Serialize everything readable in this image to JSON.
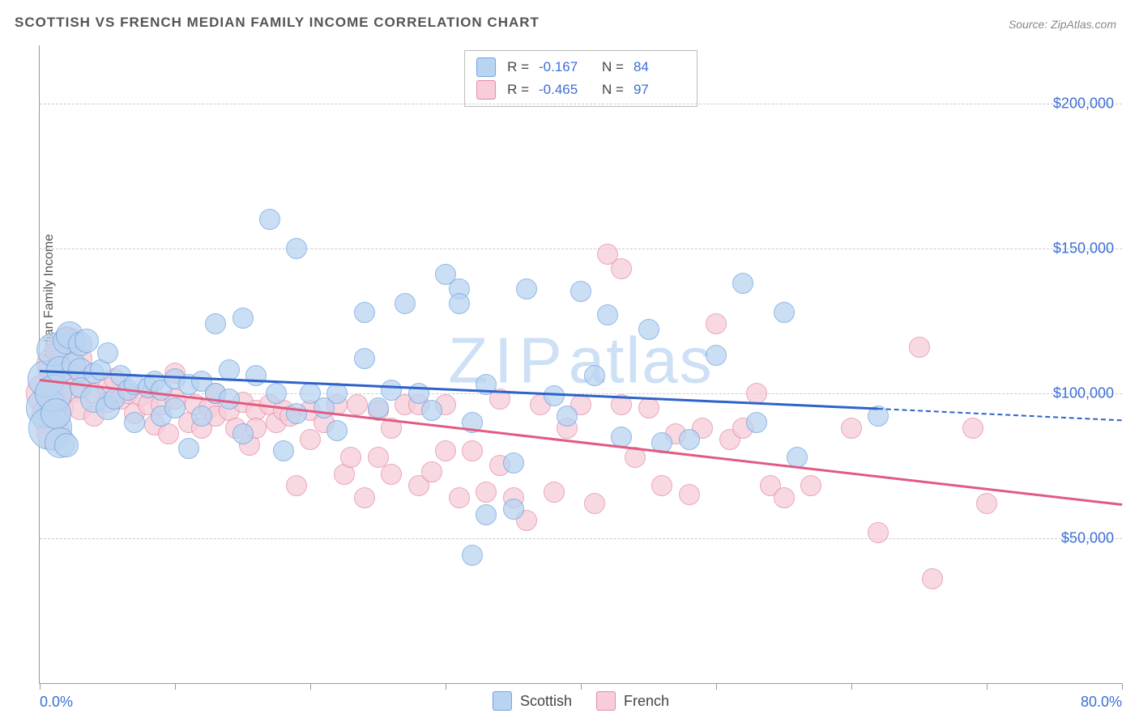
{
  "title": "SCOTTISH VS FRENCH MEDIAN FAMILY INCOME CORRELATION CHART",
  "source_prefix": "Source: ",
  "source": "ZipAtlas.com",
  "watermark": "ZIPatlas",
  "ylabel": "Median Family Income",
  "chart": {
    "type": "scatter",
    "background_color": "#ffffff",
    "grid_color": "#cccccc",
    "axis_color": "#999999",
    "xlim": [
      0,
      80
    ],
    "ylim": [
      0,
      220000
    ],
    "x_tick_positions": [
      0,
      10,
      20,
      30,
      40,
      50,
      60,
      70,
      80
    ],
    "x_axis_labels": [
      {
        "x": 0,
        "text": "0.0%",
        "align": "left"
      },
      {
        "x": 80,
        "text": "80.0%",
        "align": "right"
      }
    ],
    "y_gridlines": [
      50000,
      100000,
      150000,
      200000
    ],
    "y_tick_labels": [
      "$50,000",
      "$100,000",
      "$150,000",
      "$200,000"
    ],
    "tick_label_color": "#3b6fd6",
    "tick_label_fontsize": 18,
    "title_fontsize": 17,
    "title_color": "#555555",
    "series": {
      "scottish": {
        "label": "Scottish",
        "fill": "#b9d4f1",
        "stroke": "#6fa3e0",
        "trend_color": "#2e63c9",
        "r_value": "-0.167",
        "n_value": "84",
        "trend": {
          "x1": 0,
          "y1": 108000,
          "x2": 62,
          "y2": 95000
        },
        "trend_extend": {
          "x1": 62,
          "y1": 95000,
          "x2": 80,
          "y2": 91000
        },
        "points": [
          {
            "x": 0.5,
            "y": 95000,
            "r": 24
          },
          {
            "x": 0.5,
            "y": 105000,
            "r": 22
          },
          {
            "x": 0.8,
            "y": 88000,
            "r": 26
          },
          {
            "x": 1,
            "y": 115000,
            "r": 20
          },
          {
            "x": 1,
            "y": 100000,
            "r": 22
          },
          {
            "x": 1.2,
            "y": 93000,
            "r": 18
          },
          {
            "x": 1.5,
            "y": 83000,
            "r": 18
          },
          {
            "x": 1.5,
            "y": 108000,
            "r": 16
          },
          {
            "x": 2,
            "y": 118000,
            "r": 16
          },
          {
            "x": 2,
            "y": 82000,
            "r": 14
          },
          {
            "x": 2.2,
            "y": 120000,
            "r": 16
          },
          {
            "x": 2.5,
            "y": 110000,
            "r": 14
          },
          {
            "x": 3,
            "y": 108000,
            "r": 14
          },
          {
            "x": 3,
            "y": 117000,
            "r": 14
          },
          {
            "x": 3,
            "y": 102000,
            "r": 12
          },
          {
            "x": 3.5,
            "y": 118000,
            "r": 14
          },
          {
            "x": 4,
            "y": 107000,
            "r": 12
          },
          {
            "x": 4,
            "y": 98000,
            "r": 16
          },
          {
            "x": 4.5,
            "y": 108000,
            "r": 12
          },
          {
            "x": 5,
            "y": 95000,
            "r": 14
          },
          {
            "x": 5,
            "y": 114000,
            "r": 12
          },
          {
            "x": 5.5,
            "y": 98000,
            "r": 12
          },
          {
            "x": 6,
            "y": 106000,
            "r": 12
          },
          {
            "x": 6.5,
            "y": 101000,
            "r": 12
          },
          {
            "x": 7,
            "y": 103000,
            "r": 12
          },
          {
            "x": 7,
            "y": 90000,
            "r": 12
          },
          {
            "x": 8,
            "y": 102000,
            "r": 12
          },
          {
            "x": 8.5,
            "y": 104000,
            "r": 12
          },
          {
            "x": 9,
            "y": 101000,
            "r": 12
          },
          {
            "x": 9,
            "y": 92000,
            "r": 12
          },
          {
            "x": 10,
            "y": 105000,
            "r": 12
          },
          {
            "x": 10,
            "y": 95000,
            "r": 12
          },
          {
            "x": 11,
            "y": 103000,
            "r": 12
          },
          {
            "x": 11,
            "y": 81000,
            "r": 12
          },
          {
            "x": 12,
            "y": 104000,
            "r": 12
          },
          {
            "x": 12,
            "y": 92000,
            "r": 12
          },
          {
            "x": 13,
            "y": 124000,
            "r": 12
          },
          {
            "x": 13,
            "y": 100000,
            "r": 12
          },
          {
            "x": 14,
            "y": 108000,
            "r": 12
          },
          {
            "x": 14,
            "y": 98000,
            "r": 12
          },
          {
            "x": 15,
            "y": 86000,
            "r": 12
          },
          {
            "x": 15,
            "y": 126000,
            "r": 12
          },
          {
            "x": 16,
            "y": 106000,
            "r": 12
          },
          {
            "x": 17,
            "y": 160000,
            "r": 12
          },
          {
            "x": 17.5,
            "y": 100000,
            "r": 12
          },
          {
            "x": 18,
            "y": 80000,
            "r": 12
          },
          {
            "x": 19,
            "y": 150000,
            "r": 12
          },
          {
            "x": 19,
            "y": 93000,
            "r": 12
          },
          {
            "x": 20,
            "y": 100000,
            "r": 12
          },
          {
            "x": 21,
            "y": 95000,
            "r": 12
          },
          {
            "x": 22,
            "y": 100000,
            "r": 12
          },
          {
            "x": 22,
            "y": 87000,
            "r": 12
          },
          {
            "x": 24,
            "y": 112000,
            "r": 12
          },
          {
            "x": 24,
            "y": 128000,
            "r": 12
          },
          {
            "x": 25,
            "y": 95000,
            "r": 12
          },
          {
            "x": 26,
            "y": 101000,
            "r": 12
          },
          {
            "x": 27,
            "y": 131000,
            "r": 12
          },
          {
            "x": 28,
            "y": 100000,
            "r": 12
          },
          {
            "x": 29,
            "y": 94000,
            "r": 12
          },
          {
            "x": 30,
            "y": 141000,
            "r": 12
          },
          {
            "x": 31,
            "y": 136000,
            "r": 12
          },
          {
            "x": 31,
            "y": 131000,
            "r": 12
          },
          {
            "x": 32,
            "y": 44000,
            "r": 12
          },
          {
            "x": 32,
            "y": 90000,
            "r": 12
          },
          {
            "x": 33,
            "y": 58000,
            "r": 12
          },
          {
            "x": 33,
            "y": 103000,
            "r": 12
          },
          {
            "x": 35,
            "y": 76000,
            "r": 12
          },
          {
            "x": 35,
            "y": 60000,
            "r": 12
          },
          {
            "x": 36,
            "y": 136000,
            "r": 12
          },
          {
            "x": 38,
            "y": 99000,
            "r": 12
          },
          {
            "x": 39,
            "y": 92000,
            "r": 12
          },
          {
            "x": 40,
            "y": 135000,
            "r": 12
          },
          {
            "x": 41,
            "y": 106000,
            "r": 12
          },
          {
            "x": 42,
            "y": 127000,
            "r": 12
          },
          {
            "x": 43,
            "y": 85000,
            "r": 12
          },
          {
            "x": 45,
            "y": 122000,
            "r": 12
          },
          {
            "x": 46,
            "y": 83000,
            "r": 12
          },
          {
            "x": 48,
            "y": 84000,
            "r": 12
          },
          {
            "x": 50,
            "y": 113000,
            "r": 12
          },
          {
            "x": 52,
            "y": 138000,
            "r": 12
          },
          {
            "x": 53,
            "y": 90000,
            "r": 12
          },
          {
            "x": 55,
            "y": 128000,
            "r": 12
          },
          {
            "x": 56,
            "y": 78000,
            "r": 12
          },
          {
            "x": 62,
            "y": 92000,
            "r": 12
          }
        ]
      },
      "french": {
        "label": "French",
        "fill": "#f6cdd9",
        "stroke": "#e48ba5",
        "trend_color": "#e15b82",
        "r_value": "-0.465",
        "n_value": "97",
        "trend": {
          "x1": 0,
          "y1": 105000,
          "x2": 80,
          "y2": 62000
        },
        "points": [
          {
            "x": 0.5,
            "y": 100000,
            "r": 24
          },
          {
            "x": 0.8,
            "y": 92000,
            "r": 22
          },
          {
            "x": 1,
            "y": 110000,
            "r": 20
          },
          {
            "x": 1,
            "y": 86000,
            "r": 20
          },
          {
            "x": 1.5,
            "y": 115000,
            "r": 18
          },
          {
            "x": 1.5,
            "y": 95000,
            "r": 16
          },
          {
            "x": 2,
            "y": 104000,
            "r": 16
          },
          {
            "x": 2,
            "y": 119000,
            "r": 14
          },
          {
            "x": 2.5,
            "y": 101000,
            "r": 14
          },
          {
            "x": 2.5,
            "y": 118000,
            "r": 14
          },
          {
            "x": 3,
            "y": 112000,
            "r": 14
          },
          {
            "x": 3,
            "y": 95000,
            "r": 14
          },
          {
            "x": 3.5,
            "y": 105000,
            "r": 12
          },
          {
            "x": 4,
            "y": 100000,
            "r": 12
          },
          {
            "x": 4,
            "y": 92000,
            "r": 12
          },
          {
            "x": 5,
            "y": 102000,
            "r": 12
          },
          {
            "x": 5,
            "y": 97000,
            "r": 12
          },
          {
            "x": 5.5,
            "y": 105000,
            "r": 12
          },
          {
            "x": 6,
            "y": 98000,
            "r": 12
          },
          {
            "x": 6.5,
            "y": 100000,
            "r": 12
          },
          {
            "x": 7,
            "y": 93000,
            "r": 12
          },
          {
            "x": 7.5,
            "y": 99000,
            "r": 12
          },
          {
            "x": 8,
            "y": 96000,
            "r": 12
          },
          {
            "x": 8.5,
            "y": 89000,
            "r": 12
          },
          {
            "x": 9,
            "y": 96000,
            "r": 12
          },
          {
            "x": 9.5,
            "y": 86000,
            "r": 12
          },
          {
            "x": 10,
            "y": 98000,
            "r": 12
          },
          {
            "x": 10,
            "y": 107000,
            "r": 12
          },
          {
            "x": 11,
            "y": 90000,
            "r": 12
          },
          {
            "x": 11.5,
            "y": 96000,
            "r": 12
          },
          {
            "x": 12,
            "y": 88000,
            "r": 12
          },
          {
            "x": 12.5,
            "y": 95000,
            "r": 12
          },
          {
            "x": 13,
            "y": 92000,
            "r": 12
          },
          {
            "x": 13,
            "y": 100000,
            "r": 12
          },
          {
            "x": 14,
            "y": 94000,
            "r": 12
          },
          {
            "x": 14.5,
            "y": 88000,
            "r": 12
          },
          {
            "x": 15,
            "y": 97000,
            "r": 12
          },
          {
            "x": 15.5,
            "y": 82000,
            "r": 12
          },
          {
            "x": 16,
            "y": 94000,
            "r": 12
          },
          {
            "x": 16,
            "y": 88000,
            "r": 12
          },
          {
            "x": 17,
            "y": 96000,
            "r": 12
          },
          {
            "x": 17.5,
            "y": 90000,
            "r": 12
          },
          {
            "x": 18,
            "y": 94000,
            "r": 12
          },
          {
            "x": 18.5,
            "y": 92000,
            "r": 12
          },
          {
            "x": 19,
            "y": 68000,
            "r": 12
          },
          {
            "x": 20,
            "y": 94000,
            "r": 12
          },
          {
            "x": 20,
            "y": 84000,
            "r": 12
          },
          {
            "x": 21,
            "y": 90000,
            "r": 12
          },
          {
            "x": 22,
            "y": 96000,
            "r": 12
          },
          {
            "x": 22.5,
            "y": 72000,
            "r": 12
          },
          {
            "x": 23,
            "y": 78000,
            "r": 12
          },
          {
            "x": 23.5,
            "y": 96000,
            "r": 12
          },
          {
            "x": 24,
            "y": 64000,
            "r": 12
          },
          {
            "x": 25,
            "y": 78000,
            "r": 12
          },
          {
            "x": 25,
            "y": 94000,
            "r": 12
          },
          {
            "x": 26,
            "y": 72000,
            "r": 12
          },
          {
            "x": 26,
            "y": 88000,
            "r": 12
          },
          {
            "x": 27,
            "y": 96000,
            "r": 12
          },
          {
            "x": 28,
            "y": 96000,
            "r": 12
          },
          {
            "x": 28,
            "y": 68000,
            "r": 12
          },
          {
            "x": 29,
            "y": 73000,
            "r": 12
          },
          {
            "x": 30,
            "y": 96000,
            "r": 12
          },
          {
            "x": 30,
            "y": 80000,
            "r": 12
          },
          {
            "x": 31,
            "y": 64000,
            "r": 12
          },
          {
            "x": 32,
            "y": 80000,
            "r": 12
          },
          {
            "x": 33,
            "y": 66000,
            "r": 12
          },
          {
            "x": 34,
            "y": 75000,
            "r": 12
          },
          {
            "x": 34,
            "y": 98000,
            "r": 12
          },
          {
            "x": 35,
            "y": 64000,
            "r": 12
          },
          {
            "x": 36,
            "y": 56000,
            "r": 12
          },
          {
            "x": 37,
            "y": 96000,
            "r": 12
          },
          {
            "x": 38,
            "y": 66000,
            "r": 12
          },
          {
            "x": 39,
            "y": 88000,
            "r": 12
          },
          {
            "x": 40,
            "y": 96000,
            "r": 12
          },
          {
            "x": 41,
            "y": 62000,
            "r": 12
          },
          {
            "x": 42,
            "y": 148000,
            "r": 12
          },
          {
            "x": 43,
            "y": 143000,
            "r": 12
          },
          {
            "x": 43,
            "y": 96000,
            "r": 12
          },
          {
            "x": 44,
            "y": 78000,
            "r": 12
          },
          {
            "x": 45,
            "y": 95000,
            "r": 12
          },
          {
            "x": 46,
            "y": 68000,
            "r": 12
          },
          {
            "x": 47,
            "y": 86000,
            "r": 12
          },
          {
            "x": 48,
            "y": 65000,
            "r": 12
          },
          {
            "x": 49,
            "y": 88000,
            "r": 12
          },
          {
            "x": 50,
            "y": 124000,
            "r": 12
          },
          {
            "x": 51,
            "y": 84000,
            "r": 12
          },
          {
            "x": 52,
            "y": 88000,
            "r": 12
          },
          {
            "x": 53,
            "y": 100000,
            "r": 12
          },
          {
            "x": 54,
            "y": 68000,
            "r": 12
          },
          {
            "x": 55,
            "y": 64000,
            "r": 12
          },
          {
            "x": 57,
            "y": 68000,
            "r": 12
          },
          {
            "x": 60,
            "y": 88000,
            "r": 12
          },
          {
            "x": 62,
            "y": 52000,
            "r": 12
          },
          {
            "x": 65,
            "y": 116000,
            "r": 12
          },
          {
            "x": 66,
            "y": 36000,
            "r": 12
          },
          {
            "x": 69,
            "y": 88000,
            "r": 12
          },
          {
            "x": 70,
            "y": 62000,
            "r": 12
          }
        ]
      }
    }
  },
  "legend_top": {
    "r_label": "R =",
    "n_label": "N ="
  },
  "legend_bottom": {
    "series": [
      "scottish",
      "french"
    ]
  }
}
